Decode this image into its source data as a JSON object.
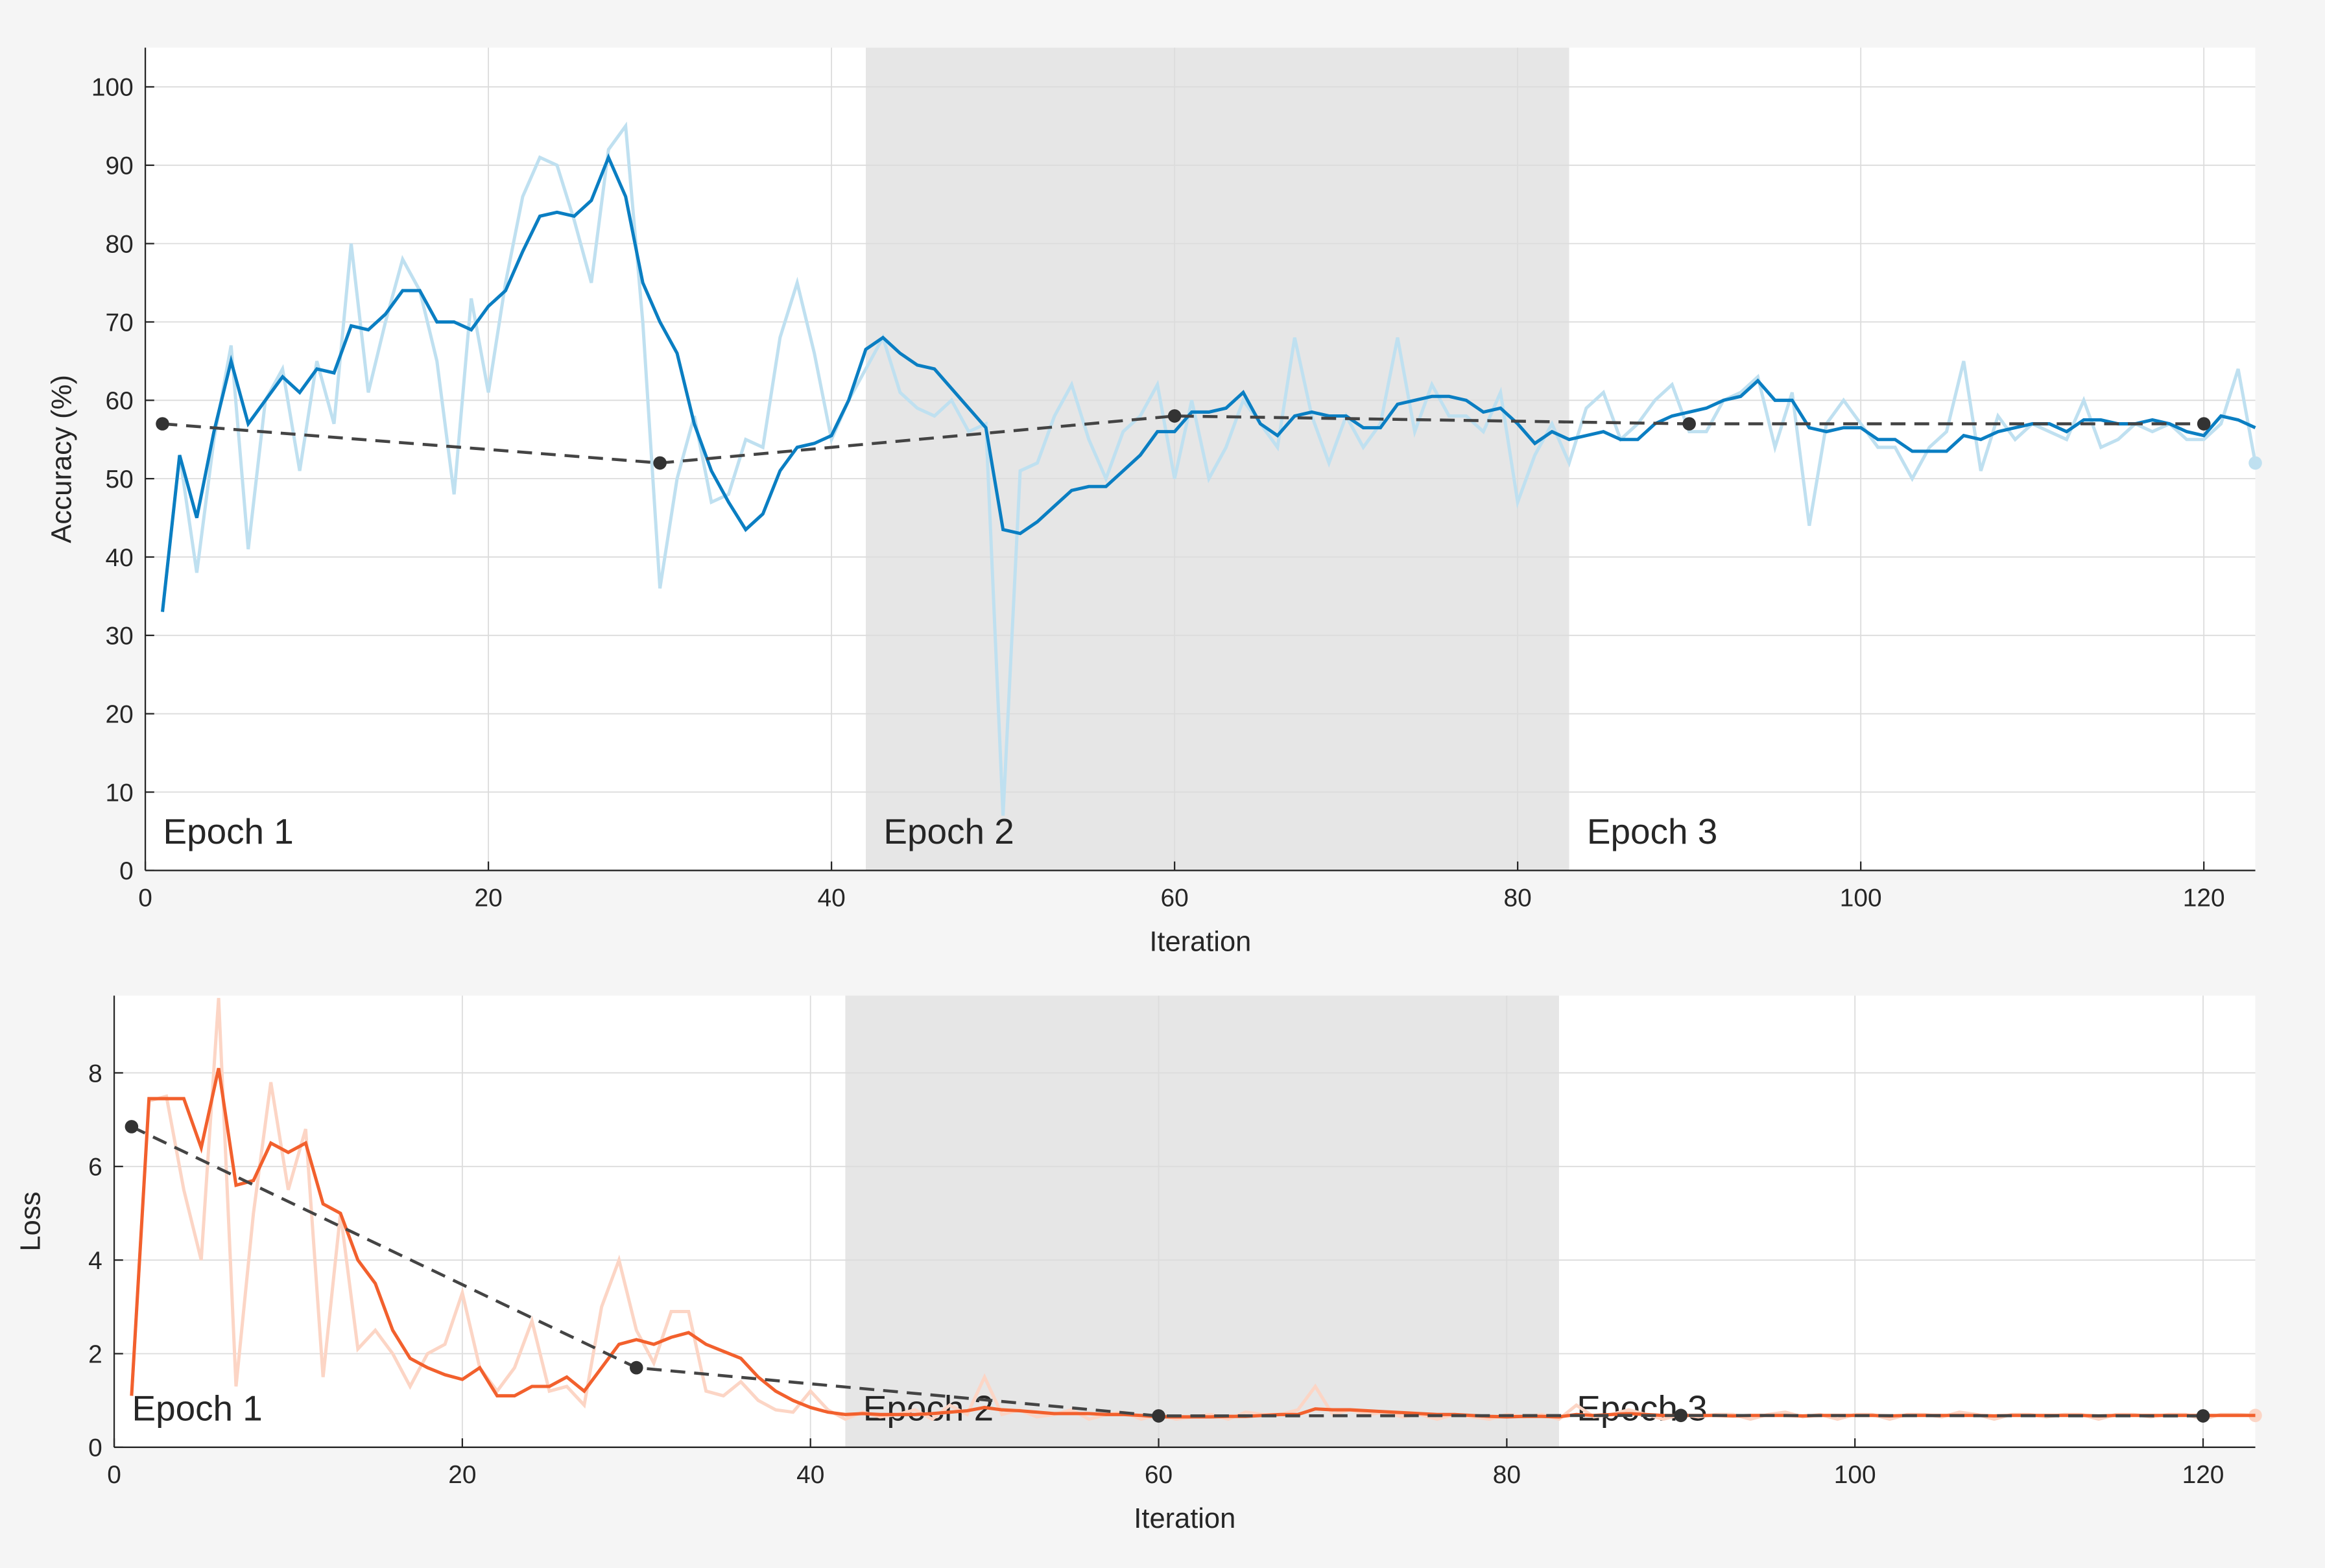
{
  "chart_data": [
    {
      "type": "line",
      "ylabel": "Accuracy (%)",
      "xlabel": "Iteration",
      "x": [
        1,
        2,
        3,
        4,
        5,
        6,
        7,
        8,
        9,
        10,
        11,
        12,
        13,
        14,
        15,
        16,
        17,
        18,
        19,
        20,
        21,
        22,
        23,
        24,
        25,
        26,
        27,
        28,
        29,
        30,
        31,
        32,
        33,
        34,
        35,
        36,
        37,
        38,
        39,
        40,
        41,
        42,
        43,
        44,
        45,
        46,
        47,
        48,
        49,
        50,
        51,
        52,
        53,
        54,
        55,
        56,
        57,
        58,
        59,
        60,
        61,
        62,
        63,
        64,
        65,
        66,
        67,
        68,
        69,
        70,
        71,
        72,
        73,
        74,
        75,
        76,
        77,
        78,
        79,
        80,
        81,
        82,
        83,
        84,
        85,
        86,
        87,
        88,
        89,
        90,
        91,
        92,
        93,
        94,
        95,
        96,
        97,
        98,
        99,
        100,
        101,
        102,
        103,
        104,
        105,
        106,
        107,
        108,
        109,
        110,
        111,
        112,
        113,
        114,
        115,
        116,
        117,
        118,
        119,
        120,
        121,
        122,
        123
      ],
      "series": [
        {
          "color": "#bfe0f0",
          "end_marker": true,
          "values": [
            33,
            53,
            38,
            55,
            67,
            41,
            60,
            64,
            51,
            65,
            57,
            80,
            61,
            70,
            78,
            74,
            65,
            48,
            73,
            61,
            75,
            86,
            91,
            90,
            83,
            75,
            92,
            95,
            70,
            36,
            50,
            58,
            47,
            48,
            55,
            54,
            68,
            75,
            66,
            55,
            60,
            64,
            68,
            61,
            59,
            58,
            60,
            56,
            57,
            7,
            51,
            52,
            58,
            62,
            55,
            50,
            56,
            58,
            62,
            50,
            60,
            50,
            54,
            60,
            57,
            54,
            68,
            58,
            52,
            58,
            54,
            57,
            68,
            56,
            62,
            58,
            58,
            56,
            61,
            47,
            53,
            57,
            52,
            59,
            61,
            55,
            57,
            60,
            62,
            56,
            56,
            60,
            61,
            63,
            54,
            61,
            44,
            57,
            60,
            57,
            54,
            54,
            50,
            54,
            56,
            65,
            51,
            58,
            55,
            57,
            56,
            55,
            60,
            54,
            55,
            57,
            56,
            57,
            55,
            55,
            57,
            64,
            52
          ]
        },
        {
          "color": "#0a7ec2",
          "values": [
            33,
            53,
            45,
            56,
            65,
            57,
            60,
            63,
            61,
            64,
            63.5,
            69.5,
            69,
            71,
            74,
            74,
            70,
            70,
            69,
            72,
            74,
            79,
            83.5,
            84,
            83.5,
            85.5,
            91,
            86,
            75,
            70,
            66,
            57,
            51,
            47,
            43.5,
            45.5,
            51,
            54,
            54.5,
            55.5,
            60,
            66.5,
            68,
            66,
            64.5,
            64,
            61.5,
            59,
            56.5,
            43.5,
            43,
            44.5,
            46.5,
            48.5,
            49,
            49,
            51,
            53,
            56,
            56,
            58.5,
            58.5,
            59,
            61,
            57,
            55.5,
            58,
            58.5,
            58,
            58,
            56.5,
            56.5,
            59.5,
            60,
            60.5,
            60.5,
            60,
            58.5,
            59,
            57,
            54.5,
            56,
            55,
            55.5,
            56,
            55,
            55,
            57,
            58,
            58.5,
            59,
            60,
            60.5,
            62.5,
            60,
            60,
            56.5,
            56,
            56.5,
            56.5,
            55,
            55,
            53.5,
            53.5,
            53.5,
            55.5,
            55,
            56,
            56.5,
            57,
            57,
            56,
            57.5,
            57.5,
            57,
            57,
            57.5,
            57,
            56,
            55.5,
            58,
            57.5,
            56.5
          ]
        },
        {
          "color": "#444444",
          "dashed": true,
          "markers": true,
          "x": [
            1,
            30,
            60,
            90,
            120
          ],
          "values": [
            57,
            52,
            58,
            57,
            57
          ]
        }
      ],
      "epochs": [
        {
          "label": "Epoch 1",
          "start": 0,
          "end": 42
        },
        {
          "label": "Epoch 2",
          "start": 42,
          "end": 83,
          "shaded": true
        },
        {
          "label": "Epoch 3",
          "start": 83,
          "end": 123
        }
      ],
      "xlim": [
        0,
        123
      ],
      "xticks": [
        0,
        20,
        40,
        60,
        80,
        100,
        120
      ],
      "ylim": [
        0,
        105
      ],
      "yticks": [
        0,
        10,
        20,
        30,
        40,
        50,
        60,
        70,
        80,
        90,
        100
      ],
      "grid": true
    },
    {
      "type": "line",
      "ylabel": "Loss",
      "xlabel": "Iteration",
      "x": [
        1,
        2,
        3,
        4,
        5,
        6,
        7,
        8,
        9,
        10,
        11,
        12,
        13,
        14,
        15,
        16,
        17,
        18,
        19,
        20,
        21,
        22,
        23,
        24,
        25,
        26,
        27,
        28,
        29,
        30,
        31,
        32,
        33,
        34,
        35,
        36,
        37,
        38,
        39,
        40,
        41,
        42,
        43,
        44,
        45,
        46,
        47,
        48,
        49,
        50,
        51,
        52,
        53,
        54,
        55,
        56,
        57,
        58,
        59,
        60,
        61,
        62,
        63,
        64,
        65,
        66,
        67,
        68,
        69,
        70,
        71,
        72,
        73,
        74,
        75,
        76,
        77,
        78,
        79,
        80,
        81,
        82,
        83,
        84,
        85,
        86,
        87,
        88,
        89,
        90,
        91,
        92,
        93,
        94,
        95,
        96,
        97,
        98,
        99,
        100,
        101,
        102,
        103,
        104,
        105,
        106,
        107,
        108,
        109,
        110,
        111,
        112,
        113,
        114,
        115,
        116,
        117,
        118,
        119,
        120,
        121,
        122,
        123
      ],
      "series": [
        {
          "color": "#fcd5c5",
          "end_marker": true,
          "values": [
            1.1,
            7.4,
            7.5,
            5.5,
            4,
            9.6,
            1.3,
            5,
            7.8,
            5.5,
            6.8,
            1.5,
            5,
            2.1,
            2.5,
            2,
            1.3,
            2,
            2.2,
            3.3,
            1.7,
            1.2,
            1.7,
            2.7,
            1.2,
            1.3,
            0.9,
            3,
            4,
            2.5,
            1.8,
            2.9,
            2.9,
            1.2,
            1.1,
            1.4,
            1,
            0.8,
            0.75,
            1.2,
            0.8,
            0.6,
            0.75,
            0.65,
            0.7,
            0.8,
            0.6,
            0.9,
            0.7,
            1.5,
            0.7,
            0.8,
            0.65,
            0.7,
            0.8,
            0.6,
            0.7,
            0.75,
            0.6,
            0.7,
            0.6,
            0.65,
            0.7,
            0.6,
            0.75,
            0.7,
            0.7,
            0.8,
            1.3,
            0.7,
            0.8,
            0.7,
            0.75,
            0.65,
            0.7,
            0.6,
            0.7,
            0.65,
            0.6,
            0.7,
            0.65,
            0.7,
            0.6,
            0.9,
            0.65,
            0.7,
            0.8,
            0.7,
            0.6,
            0.7,
            0.65,
            0.7,
            0.7,
            0.6,
            0.7,
            0.75,
            0.65,
            0.7,
            0.6,
            0.7,
            0.7,
            0.6,
            0.7,
            0.7,
            0.65,
            0.75,
            0.7,
            0.6,
            0.7,
            0.7,
            0.65,
            0.7,
            0.7,
            0.6,
            0.7,
            0.7,
            0.65,
            0.7,
            0.7,
            0.6,
            0.7,
            0.7,
            0.68
          ]
        },
        {
          "color": "#f2602d",
          "values": [
            1.1,
            7.45,
            7.45,
            7.45,
            6.4,
            8.1,
            5.6,
            5.7,
            6.5,
            6.3,
            6.5,
            5.2,
            5,
            4,
            3.5,
            2.5,
            1.9,
            1.7,
            1.55,
            1.45,
            1.7,
            1.1,
            1.1,
            1.3,
            1.3,
            1.5,
            1.2,
            1.7,
            2.2,
            2.3,
            2.2,
            2.35,
            2.45,
            2.2,
            2.05,
            1.9,
            1.5,
            1.2,
            1,
            0.85,
            0.75,
            0.7,
            0.72,
            0.7,
            0.7,
            0.7,
            0.72,
            0.75,
            0.78,
            0.85,
            0.8,
            0.78,
            0.75,
            0.72,
            0.72,
            0.72,
            0.7,
            0.7,
            0.68,
            0.65,
            0.65,
            0.65,
            0.65,
            0.66,
            0.66,
            0.68,
            0.7,
            0.7,
            0.82,
            0.8,
            0.8,
            0.78,
            0.76,
            0.74,
            0.72,
            0.7,
            0.7,
            0.68,
            0.66,
            0.65,
            0.66,
            0.66,
            0.65,
            0.7,
            0.68,
            0.7,
            0.72,
            0.7,
            0.68,
            0.68,
            0.68,
            0.68,
            0.67,
            0.68,
            0.68,
            0.68,
            0.67,
            0.68,
            0.68,
            0.68,
            0.68,
            0.67,
            0.68,
            0.68,
            0.68,
            0.68,
            0.68,
            0.67,
            0.68,
            0.68,
            0.68,
            0.68,
            0.68,
            0.67,
            0.68,
            0.68,
            0.68,
            0.68,
            0.68,
            0.68,
            0.68,
            0.68,
            0.68
          ]
        },
        {
          "color": "#444444",
          "dashed": true,
          "markers": true,
          "x": [
            1,
            30,
            60,
            90,
            120
          ],
          "values": [
            6.85,
            1.7,
            0.67,
            0.68,
            0.67
          ]
        }
      ],
      "epochs": [
        {
          "label": "Epoch 1",
          "start": 0,
          "end": 42
        },
        {
          "label": "Epoch 2",
          "start": 42,
          "end": 83,
          "shaded": true
        },
        {
          "label": "Epoch 3",
          "start": 83,
          "end": 123
        }
      ],
      "xlim": [
        0,
        123
      ],
      "xticks": [
        0,
        20,
        40,
        60,
        80,
        100,
        120
      ],
      "ylim": [
        0,
        9.65
      ],
      "yticks": [
        0,
        2,
        4,
        6,
        8
      ],
      "grid": true
    }
  ]
}
